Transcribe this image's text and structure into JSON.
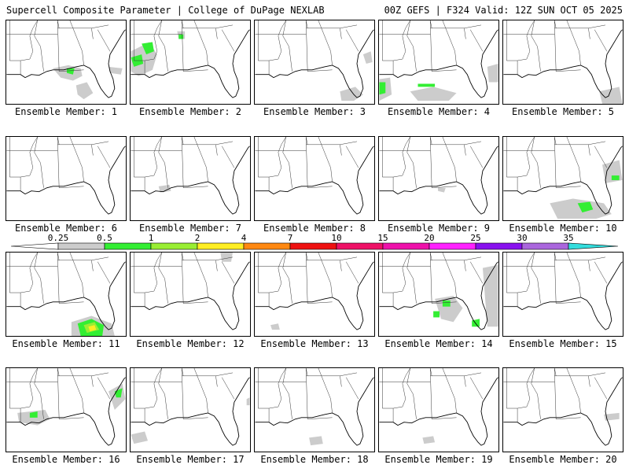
{
  "header": {
    "left": "Supercell Composite Parameter | College of DuPage NEXLAB",
    "right": "00Z GEFS | F324 Valid: 12Z SUN OCT 05 2025"
  },
  "panels": [
    {
      "label": "Ensemble Member: 1"
    },
    {
      "label": "Ensemble Member: 2"
    },
    {
      "label": "Ensemble Member: 3"
    },
    {
      "label": "Ensemble Member: 4"
    },
    {
      "label": "Ensemble Member: 5"
    },
    {
      "label": "Ensemble Member: 6"
    },
    {
      "label": "Ensemble Member: 7"
    },
    {
      "label": "Ensemble Member: 8"
    },
    {
      "label": "Ensemble Member: 9"
    },
    {
      "label": "Ensemble Member: 10"
    },
    {
      "label": "Ensemble Member: 11"
    },
    {
      "label": "Ensemble Member: 12"
    },
    {
      "label": "Ensemble Member: 13"
    },
    {
      "label": "Ensemble Member: 14"
    },
    {
      "label": "Ensemble Member: 15"
    },
    {
      "label": "Ensemble Member: 16"
    },
    {
      "label": "Ensemble Member: 17"
    },
    {
      "label": "Ensemble Member: 18"
    },
    {
      "label": "Ensemble Member: 19"
    },
    {
      "label": "Ensemble Member: 20"
    }
  ],
  "colorbar": {
    "ticks": [
      "0.25",
      "0.5",
      "1",
      "2",
      "4",
      "7",
      "10",
      "15",
      "20",
      "25",
      "30",
      "35"
    ],
    "colors": [
      "#cccccc",
      "#33ee33",
      "#99ee33",
      "#ffee22",
      "#ff8811",
      "#ee1111",
      "#ee1166",
      "#ee11aa",
      "#ff22ff",
      "#8811ee",
      "#aa66dd"
    ],
    "extend_low_color": "#ffffff",
    "extend_high_color": "#33dddd"
  },
  "colors": {
    "land_fill": "#ffffff",
    "water_fill": "#ffffff",
    "border_line": "#000000"
  }
}
